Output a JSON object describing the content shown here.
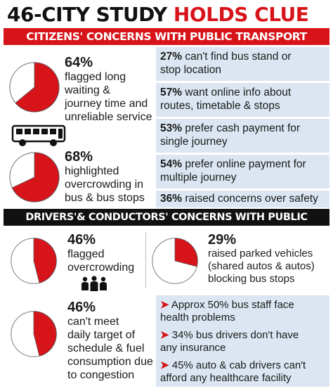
{
  "title": {
    "part1": "46-CITY STUDY",
    "part2": "HOLDS CLUE"
  },
  "banners": {
    "citizens": "CITIZENS' CONCERNS WITH PUBLIC TRANSPORT",
    "drivers": "DRIVERS'& CONDUCTORS' CONCERNS WITH PUBLIC TRANSPORT"
  },
  "colors": {
    "accent": "#d7141a",
    "panel": "#dbe6f2",
    "dark": "#111111"
  },
  "citizens": {
    "pies": [
      {
        "pct": "64%",
        "value": 64,
        "lines": [
          "flagged long",
          "waiting &",
          "journey time and",
          "unreliable service"
        ]
      },
      {
        "pct": "68%",
        "value": 68,
        "lines": [
          "highlighted",
          "overcrowding in",
          "bus & bus stops"
        ]
      }
    ],
    "list": [
      {
        "pct": "27%",
        "text": " can't find bus stand or",
        "text2": "stop location"
      },
      {
        "pct": "57%",
        "text": " want online info about",
        "text2": "routes, timetable & stops"
      },
      {
        "pct": "53%",
        "text": " prefer cash payment for",
        "text2": "single journey"
      },
      {
        "pct": "54%",
        "text": " prefer online payment for",
        "text2": "multiple journey"
      },
      {
        "pct": "36%",
        "text": " raised concerns over safety",
        "text2": ""
      }
    ]
  },
  "drivers": {
    "pies": [
      {
        "pct": "46%",
        "value": 46,
        "lines": [
          "flagged",
          "overcrowding"
        ]
      },
      {
        "pct": "29%",
        "value": 29,
        "lines": [
          "raised parked vehicles",
          "(shared autos & autos)",
          "blocking bus stops"
        ]
      },
      {
        "pct": "46%",
        "value": 46,
        "lines": [
          "can't meet",
          "daily target of",
          "schedule & fuel",
          "consumption due",
          "to congestion"
        ]
      }
    ],
    "bullets": [
      {
        "marker": "➤",
        "line1": " Approx 50% bus staff face",
        "line2": "health problems"
      },
      {
        "marker": "➤",
        "line1": " 34% bus drivers don't have",
        "line2": "any insurance"
      },
      {
        "marker": "➤",
        "line1": " 45% auto & cab drivers can't",
        "line2": "afford any healthcare facility"
      }
    ]
  },
  "icons": {
    "bus": "bus-icon",
    "people": "people-group-icon"
  }
}
